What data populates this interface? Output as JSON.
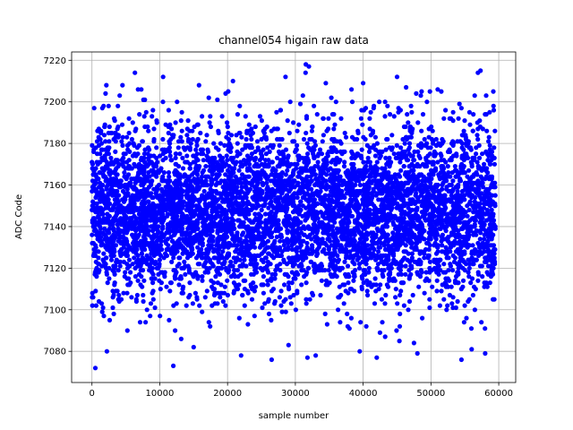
{
  "chart_data": {
    "type": "scatter",
    "title": "channel054 higain raw data",
    "xlabel": "sample number",
    "ylabel": "ADC Code",
    "xlim": [
      -3000,
      62500
    ],
    "ylim": [
      7065,
      7224
    ],
    "xticks": [
      0,
      10000,
      20000,
      30000,
      40000,
      50000,
      60000
    ],
    "yticks": [
      7080,
      7100,
      7120,
      7140,
      7160,
      7180,
      7200,
      7220
    ],
    "grid": true,
    "marker_color": "#0000ff",
    "series": [
      {
        "x_range": [
          0,
          59500
        ],
        "dense_band": [
          7105,
          7190
        ],
        "outliers": [
          [
            500,
            7072
          ],
          [
            12000,
            7073
          ],
          [
            32000,
            7217
          ],
          [
            31500,
            7214
          ],
          [
            10500,
            7212
          ],
          [
            20800,
            7210
          ],
          [
            45000,
            7212
          ],
          [
            4500,
            7208
          ],
          [
            48500,
            7203
          ],
          [
            51000,
            7206
          ],
          [
            42000,
            7077
          ],
          [
            54500,
            7076
          ],
          [
            22000,
            7078
          ],
          [
            33000,
            7078
          ],
          [
            48000,
            7079
          ],
          [
            58000,
            7079
          ],
          [
            39500,
            7080
          ],
          [
            56000,
            7081
          ],
          [
            26500,
            7076
          ],
          [
            40000,
            7209
          ],
          [
            7800,
            7201
          ],
          [
            18500,
            7201
          ],
          [
            36000,
            7200
          ],
          [
            59200,
            7205
          ],
          [
            2200,
            7080
          ],
          [
            15000,
            7082
          ],
          [
            29000,
            7083
          ],
          [
            47500,
            7084
          ]
        ]
      }
    ]
  }
}
